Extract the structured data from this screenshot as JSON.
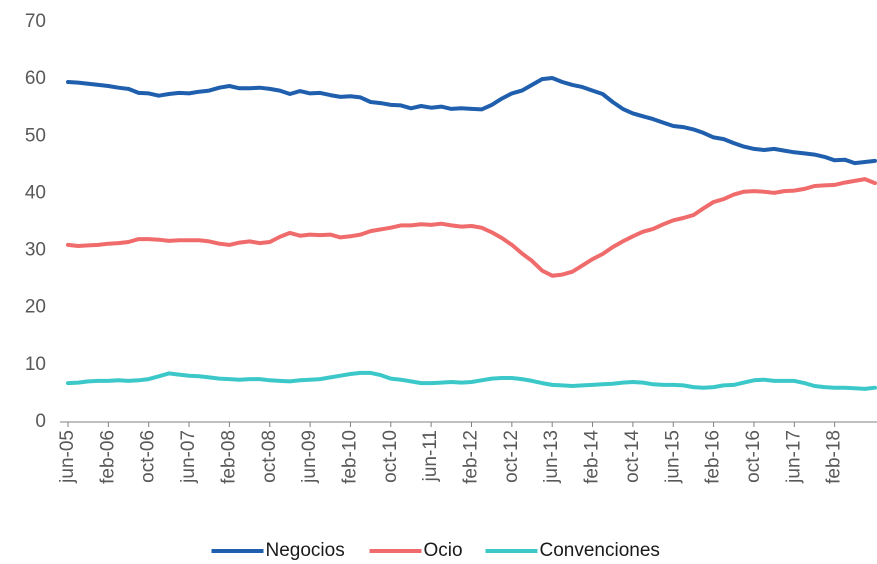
{
  "chart_data": {
    "type": "line",
    "categories": [
      "jun-05",
      null,
      null,
      null,
      "feb-06",
      null,
      null,
      null,
      "oct-06",
      null,
      null,
      null,
      "jun-07",
      null,
      null,
      null,
      "feb-08",
      null,
      null,
      null,
      "oct-08",
      null,
      null,
      null,
      "jun-09",
      null,
      null,
      null,
      "feb-10",
      null,
      null,
      null,
      "oct-10",
      null,
      null,
      null,
      "jun-11",
      null,
      null,
      null,
      "feb-12",
      null,
      null,
      null,
      "oct-12",
      null,
      null,
      null,
      "jun-13",
      null,
      null,
      null,
      "feb-14",
      null,
      null,
      null,
      "oct-14",
      null,
      null,
      null,
      "jun-15",
      null,
      null,
      null,
      "feb-16",
      null,
      null,
      null,
      "oct-16",
      null,
      null,
      null,
      "jun-17",
      null,
      null,
      null,
      "feb-18",
      null,
      null,
      null,
      null
    ],
    "series": [
      {
        "name": "Negocios",
        "color": "#1f5fad",
        "values": [
          59.5,
          59.4,
          59.2,
          59.0,
          58.8,
          58.5,
          58.3,
          57.6,
          57.5,
          57.1,
          57.4,
          57.6,
          57.5,
          57.8,
          58.0,
          58.5,
          58.8,
          58.4,
          58.4,
          58.5,
          58.3,
          58.0,
          57.4,
          57.9,
          57.5,
          57.6,
          57.2,
          56.9,
          57.0,
          56.8,
          56.0,
          55.8,
          55.5,
          55.4,
          54.9,
          55.3,
          55.0,
          55.2,
          54.8,
          54.9,
          54.8,
          54.7,
          55.5,
          56.6,
          57.5,
          58.0,
          59.0,
          60.0,
          60.2,
          59.5,
          59.0,
          58.6,
          58.0,
          57.4,
          56.0,
          54.8,
          54.0,
          53.5,
          53.0,
          52.4,
          51.8,
          51.6,
          51.2,
          50.6,
          49.8,
          49.5,
          48.8,
          48.2,
          47.8,
          47.6,
          47.8,
          47.5,
          47.2,
          47.0,
          46.8,
          46.4,
          45.8,
          45.9,
          45.3,
          45.5,
          45.7
        ]
      },
      {
        "name": "Ocio",
        "color": "#f06b6b",
        "values": [
          31.0,
          30.8,
          30.9,
          31.0,
          31.2,
          31.3,
          31.5,
          32.0,
          32.0,
          31.9,
          31.7,
          31.8,
          31.8,
          31.8,
          31.6,
          31.2,
          31.0,
          31.4,
          31.6,
          31.3,
          31.5,
          32.4,
          33.1,
          32.6,
          32.8,
          32.7,
          32.8,
          32.3,
          32.5,
          32.8,
          33.4,
          33.7,
          34.0,
          34.4,
          34.4,
          34.6,
          34.5,
          34.7,
          34.4,
          34.2,
          34.3,
          34.0,
          33.2,
          32.2,
          31.0,
          29.5,
          28.2,
          26.5,
          25.6,
          25.8,
          26.3,
          27.4,
          28.5,
          29.4,
          30.6,
          31.6,
          32.5,
          33.3,
          33.8,
          34.6,
          35.3,
          35.7,
          36.2,
          37.4,
          38.5,
          39.0,
          39.8,
          40.3,
          40.4,
          40.3,
          40.1,
          40.4,
          40.5,
          40.8,
          41.3,
          41.4,
          41.5,
          41.9,
          42.2,
          42.5,
          41.8
        ]
      },
      {
        "name": "Convenciones",
        "color": "#3cc8c8",
        "values": [
          6.8,
          6.9,
          7.1,
          7.2,
          7.2,
          7.3,
          7.2,
          7.3,
          7.5,
          8.0,
          8.5,
          8.3,
          8.1,
          8.0,
          7.8,
          7.6,
          7.5,
          7.4,
          7.5,
          7.5,
          7.3,
          7.2,
          7.1,
          7.3,
          7.4,
          7.5,
          7.8,
          8.1,
          8.4,
          8.6,
          8.6,
          8.2,
          7.6,
          7.4,
          7.1,
          6.8,
          6.8,
          6.9,
          7.0,
          6.9,
          7.0,
          7.3,
          7.6,
          7.7,
          7.7,
          7.5,
          7.2,
          6.8,
          6.5,
          6.4,
          6.3,
          6.4,
          6.5,
          6.6,
          6.7,
          6.9,
          7.0,
          6.9,
          6.6,
          6.5,
          6.5,
          6.4,
          6.1,
          6.0,
          6.1,
          6.4,
          6.5,
          6.9,
          7.3,
          7.4,
          7.2,
          7.2,
          7.2,
          6.8,
          6.3,
          6.1,
          6.0,
          6.0,
          5.9,
          5.8,
          6.0
        ]
      }
    ],
    "ylim": [
      0,
      70
    ],
    "yticks": [
      0,
      10,
      20,
      30,
      40,
      50,
      60,
      70
    ],
    "grid": false,
    "legend": "bottom"
  }
}
